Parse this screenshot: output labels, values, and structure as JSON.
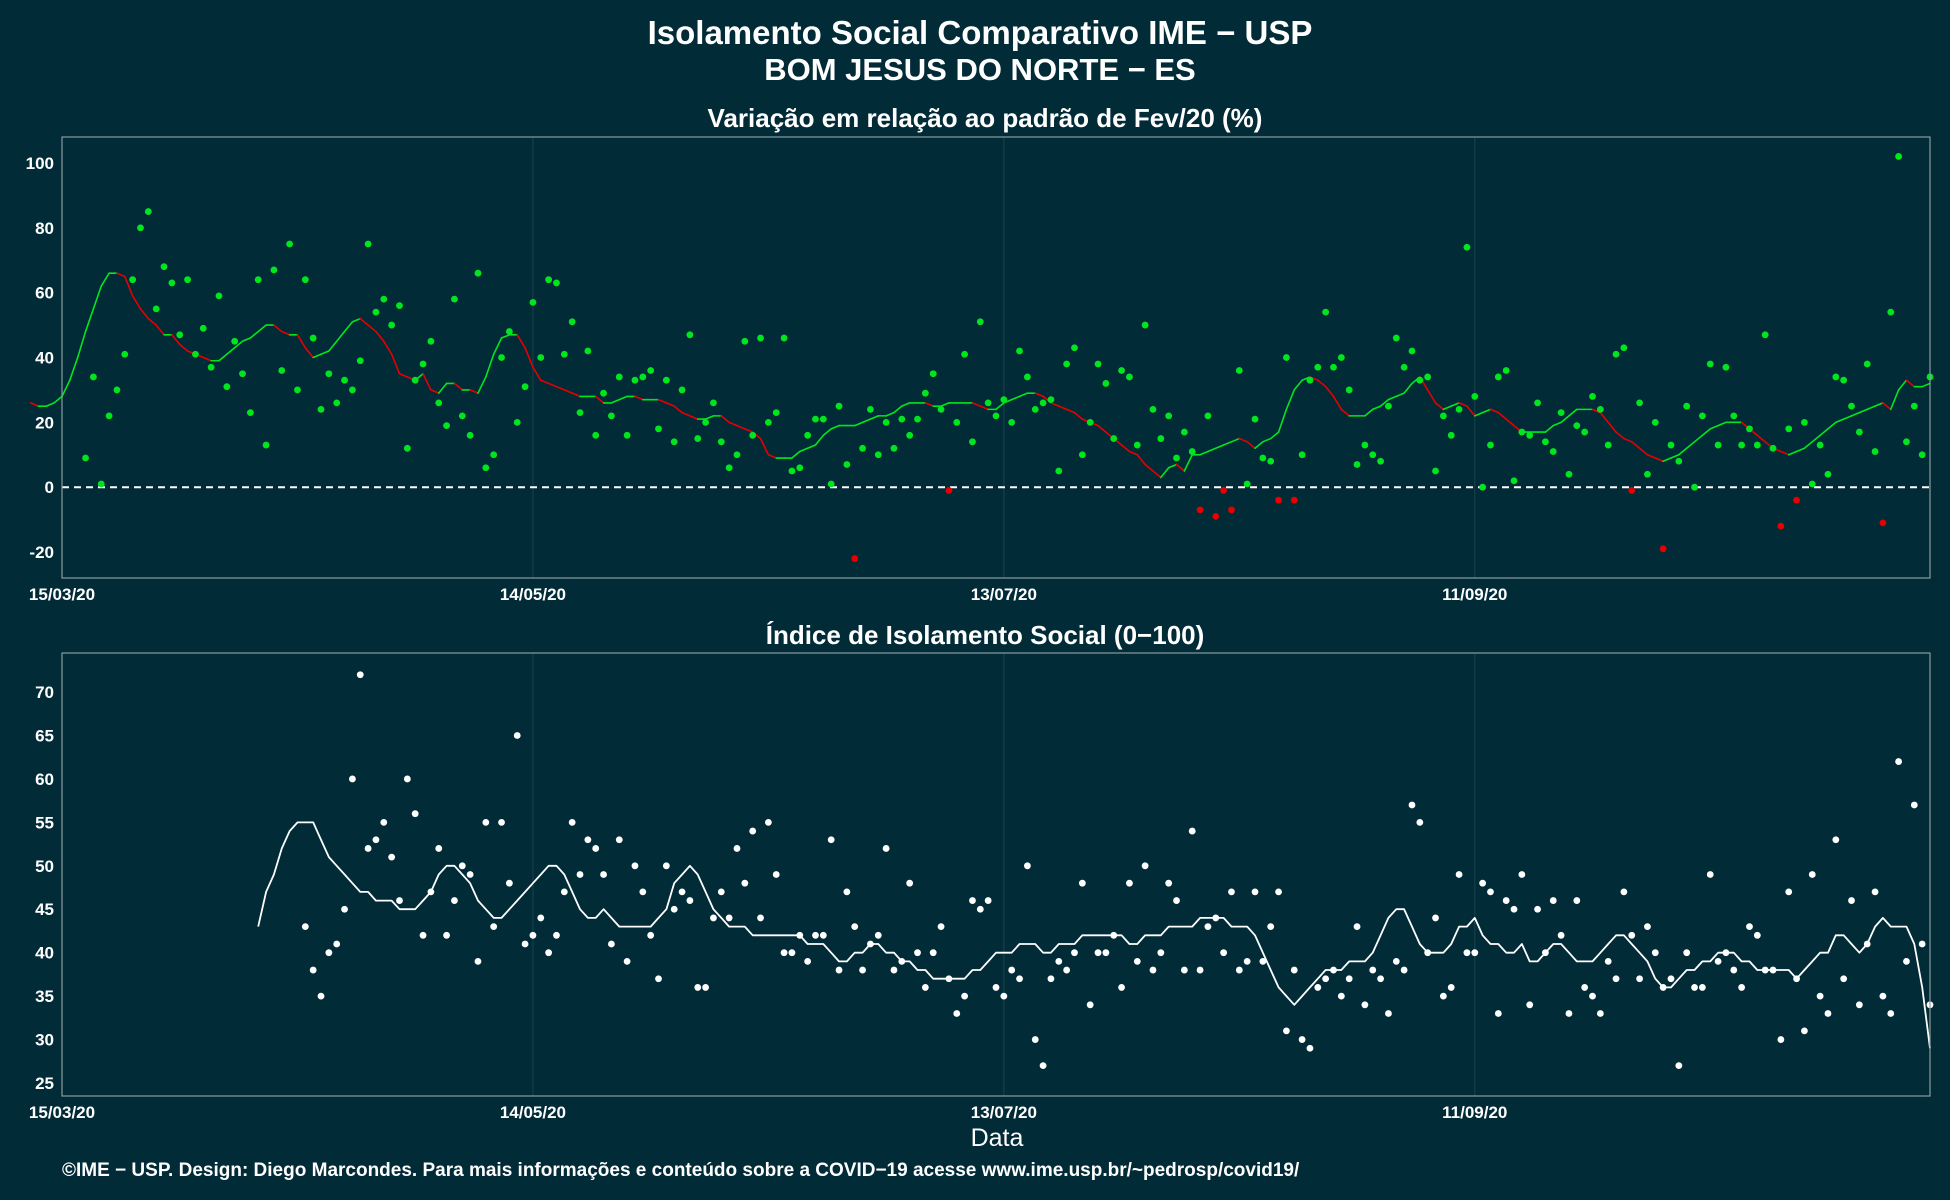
{
  "title_line1": "Isolamento Social Comparativo IME − USP",
  "title_line2": "BOM JESUS DO NORTE − ES",
  "xlabel": "Data",
  "footer": "©IME − USP. Design: Diego Marcondes. Para mais informações e conteúdo sobre a COVID−19 acesse www.ime.usp.br/~pedrosp/covid19/",
  "colors": {
    "background": "#022b38",
    "positive": "#00e61e",
    "negative": "#e60000",
    "index": "#ffffff"
  },
  "chart_data": [
    {
      "type": "scatter",
      "title": "Variação em relação ao padrão de Fev/20 (%)",
      "x_start": "2020-03-15",
      "x_end": "2020-11-08",
      "xticks": [
        "15/03/20",
        "14/05/20",
        "13/07/20",
        "11/09/20"
      ],
      "yticks": [
        -20,
        0,
        20,
        40,
        60,
        80,
        100
      ],
      "ylim": [
        -28,
        108
      ],
      "reference_line": 0,
      "series": [
        {
          "values": [
            9,
            34,
            1,
            22,
            30,
            41,
            64,
            80,
            85,
            55,
            68,
            63,
            47,
            64,
            41,
            49,
            37,
            59,
            31,
            45,
            35,
            23,
            64,
            13,
            67,
            36,
            75,
            30,
            64,
            46,
            24,
            35,
            26,
            33,
            30,
            39,
            75,
            54,
            58,
            50,
            56,
            12,
            33,
            38,
            45,
            26,
            19,
            58,
            22,
            16,
            66,
            6,
            10,
            40,
            48,
            20,
            31,
            57,
            40,
            64,
            63,
            41,
            51,
            23,
            42,
            16,
            29,
            22,
            34,
            16,
            33,
            34,
            36,
            18,
            33,
            14,
            30,
            47,
            15,
            20,
            26,
            14,
            6,
            10,
            45,
            16,
            46,
            20,
            23,
            46,
            5,
            6,
            16,
            21,
            21,
            1,
            25,
            7,
            -22,
            12,
            24,
            10,
            20,
            12,
            21,
            16,
            21,
            29,
            35,
            24,
            -1,
            20,
            41,
            14,
            51,
            26,
            22,
            27,
            20,
            42,
            34,
            24,
            26,
            27,
            5,
            38,
            43,
            10,
            20,
            38,
            32,
            15,
            36,
            34,
            13,
            50,
            24,
            15,
            22,
            9,
            17,
            11,
            -7,
            22,
            -9,
            -1,
            -7,
            36,
            1,
            21,
            9,
            8,
            -4,
            40,
            -4,
            10,
            33,
            37,
            54,
            37,
            40,
            30,
            7,
            13,
            10,
            8,
            25,
            46,
            37,
            42,
            33,
            34,
            5,
            22,
            16,
            24,
            74,
            28,
            0,
            13,
            34,
            36,
            2,
            17,
            16,
            26,
            14,
            11,
            23,
            4,
            19,
            17,
            28,
            24,
            13,
            41,
            43,
            -1,
            26,
            4,
            20,
            -19,
            13,
            8,
            25,
            0,
            22,
            38,
            13,
            37,
            22,
            13,
            18,
            13,
            47,
            12,
            -12,
            18,
            -4,
            20,
            1,
            13,
            4,
            34,
            33,
            25,
            17,
            38,
            11,
            -11,
            54,
            102,
            14,
            25,
            10,
            34
          ]
        },
        {
          "name": "média móvel",
          "values": [
            26,
            25,
            25,
            26,
            28,
            33,
            40,
            48,
            55,
            62,
            66,
            66,
            65,
            59,
            55,
            52,
            50,
            47,
            47,
            44,
            42,
            41,
            40,
            39,
            39,
            41,
            43,
            45,
            46,
            48,
            50,
            50,
            48,
            47,
            47,
            43,
            40,
            41,
            42,
            45,
            48,
            51,
            52,
            50,
            48,
            45,
            41,
            35,
            34,
            33,
            35,
            30,
            29,
            32,
            32,
            30,
            30,
            29,
            34,
            41,
            46,
            47,
            47,
            43,
            37,
            33,
            32,
            31,
            30,
            29,
            28,
            28,
            28,
            26,
            26,
            27,
            28,
            28,
            27,
            27,
            27,
            26,
            25,
            23,
            22,
            21,
            21,
            22,
            22,
            20,
            19,
            18,
            17,
            15,
            10,
            9,
            9,
            9,
            11,
            12,
            13,
            16,
            18,
            19,
            19,
            19,
            20,
            21,
            22,
            22,
            23,
            25,
            26,
            26,
            26,
            25,
            25,
            26,
            26,
            26,
            26,
            25,
            24,
            24,
            26,
            27,
            28,
            29,
            29,
            28,
            26,
            25,
            24,
            23,
            21,
            20,
            19,
            17,
            15,
            13,
            11,
            10,
            7,
            5,
            3,
            6,
            7,
            5,
            10,
            10,
            11,
            12,
            13,
            14,
            15,
            14,
            12,
            14,
            15,
            17,
            24,
            30,
            33,
            34,
            33,
            31,
            28,
            24,
            22,
            22,
            22,
            24,
            25,
            27,
            28,
            29,
            32,
            34,
            30,
            26,
            24,
            25,
            26,
            25,
            22,
            23,
            24,
            23,
            21,
            19,
            17,
            17,
            17,
            17,
            19,
            20,
            22,
            24,
            24,
            24,
            23,
            20,
            17,
            15,
            14,
            12,
            10,
            9,
            8,
            9,
            10,
            12,
            14,
            16,
            18,
            19,
            20,
            20,
            20,
            18,
            16,
            14,
            12,
            11,
            10,
            11,
            12,
            14,
            16,
            18,
            20,
            21,
            22,
            23,
            24,
            25,
            26,
            24,
            30,
            33,
            31,
            31,
            32
          ]
        }
      ]
    },
    {
      "type": "scatter",
      "title": "Índice de Isolamento Social (0−100)",
      "x_start": "2020-03-15",
      "x_end": "2020-11-08",
      "xticks": [
        "15/03/20",
        "14/05/20",
        "13/07/20",
        "11/09/20"
      ],
      "yticks": [
        25,
        30,
        35,
        40,
        45,
        50,
        55,
        60,
        65,
        70
      ],
      "ylim": [
        23.5,
        74.5
      ],
      "series": [
        {
          "values": [
            43,
            38,
            35,
            40,
            41,
            45,
            60,
            72,
            52,
            53,
            55,
            51,
            46,
            60,
            56,
            42,
            47,
            52,
            42,
            46,
            50,
            49,
            39,
            55,
            43,
            55,
            48,
            65,
            41,
            42,
            44,
            40,
            42,
            47,
            55,
            49,
            53,
            52,
            49,
            41,
            53,
            39,
            50,
            47,
            42,
            37,
            50,
            45,
            47,
            46,
            36,
            36,
            44,
            47,
            44,
            52,
            48,
            54,
            44,
            55,
            49,
            40,
            40,
            42,
            39,
            42,
            42,
            53,
            38,
            47,
            43,
            38,
            41,
            42,
            52,
            38,
            39,
            48,
            40,
            36,
            40,
            43,
            37,
            33,
            35,
            46,
            45,
            46,
            36,
            35,
            38,
            37,
            50,
            30,
            27,
            37,
            39,
            38,
            40,
            48,
            34,
            40,
            40,
            42,
            36,
            48,
            39,
            50,
            38,
            40,
            48,
            46,
            38,
            54,
            38,
            43,
            44,
            40,
            47,
            38,
            39,
            47,
            39,
            43,
            47,
            31,
            38,
            30,
            29,
            36,
            37,
            38,
            35,
            37,
            43,
            34,
            38,
            37,
            33,
            39,
            38,
            57,
            55,
            40,
            44,
            35,
            36,
            49,
            40,
            40,
            48,
            47,
            33,
            46,
            45,
            49,
            34,
            45,
            40,
            46,
            42,
            33,
            46,
            36,
            35,
            33,
            39,
            37,
            47,
            42,
            37,
            43,
            40,
            36,
            37,
            27,
            40,
            36,
            36,
            49,
            39,
            40,
            38,
            36,
            43,
            42,
            38,
            38,
            30,
            47,
            37,
            31,
            49,
            35,
            33,
            53,
            37,
            46,
            34,
            41,
            47,
            35,
            33,
            62,
            39,
            57,
            41,
            34
          ]
        },
        {
          "name": "média móvel",
          "values": [
            43,
            47,
            49,
            52,
            54,
            55,
            55,
            55,
            53,
            51,
            50,
            49,
            48,
            47,
            47,
            46,
            46,
            46,
            45,
            45,
            45,
            46,
            47,
            49,
            50,
            50,
            49,
            48,
            46,
            45,
            44,
            44,
            45,
            46,
            47,
            48,
            49,
            50,
            50,
            49,
            47,
            45,
            44,
            44,
            45,
            44,
            43,
            43,
            43,
            43,
            43,
            44,
            45,
            48,
            49,
            50,
            49,
            47,
            45,
            44,
            43,
            43,
            43,
            42,
            42,
            42,
            42,
            42,
            42,
            42,
            41,
            41,
            41,
            40,
            39,
            39,
            40,
            40,
            41,
            41,
            40,
            40,
            39,
            39,
            38,
            38,
            37,
            37,
            37,
            37,
            37,
            38,
            38,
            39,
            40,
            40,
            40,
            41,
            41,
            41,
            40,
            40,
            41,
            41,
            41,
            42,
            42,
            42,
            42,
            42,
            42,
            41,
            41,
            42,
            42,
            42,
            43,
            43,
            43,
            43,
            44,
            44,
            44,
            44,
            43,
            43,
            43,
            42,
            40,
            38,
            36,
            35,
            34,
            35,
            36,
            37,
            38,
            38,
            38,
            39,
            39,
            39,
            40,
            42,
            44,
            45,
            45,
            43,
            41,
            40,
            40,
            40,
            41,
            43,
            43,
            44,
            42,
            41,
            41,
            40,
            40,
            41,
            39,
            39,
            40,
            41,
            41,
            40,
            39,
            39,
            39,
            40,
            41,
            42,
            42,
            41,
            40,
            39,
            37,
            36,
            36,
            37,
            38,
            38,
            39,
            39,
            40,
            40,
            40,
            39,
            39,
            38,
            38,
            38,
            38,
            38,
            37,
            38,
            39,
            40,
            40,
            42,
            42,
            41,
            40,
            41,
            43,
            44,
            43,
            43,
            43,
            41,
            36,
            29
          ]
        }
      ]
    }
  ]
}
